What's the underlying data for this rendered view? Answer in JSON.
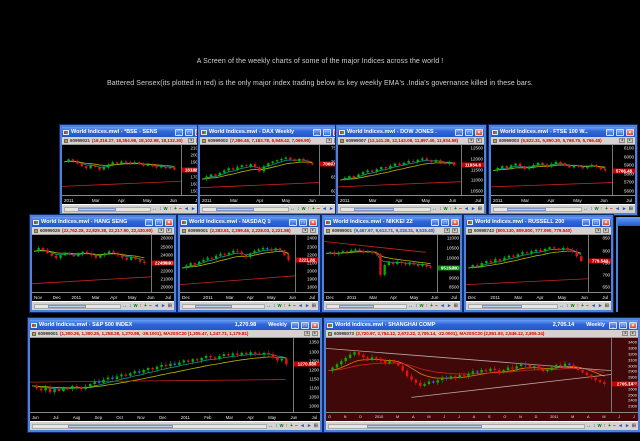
{
  "captions": {
    "line1": "A Screen of the weekly charts of some of the major Indices across the world !",
    "line2": "Battered Sensex(its plotted in red) is the only major index trading below its key weekly EMA's .India's governance killed in these bars."
  },
  "chrome": {
    "minimize": "_",
    "maximize": "□",
    "close": "×"
  },
  "strip_buttons": [
    "◄",
    "►"
  ],
  "toolbar": {
    "icons": [
      {
        "glyph": "↔",
        "color": "#2050c0"
      },
      {
        "glyph": "↕",
        "color": "#2050c0"
      },
      {
        "glyph": "w",
        "color": "#007700"
      },
      {
        "glyph": "↑",
        "color": "#cc0000"
      },
      {
        "glyph": "+",
        "color": "#007700"
      },
      {
        "glyph": "−",
        "color": "#cc0000"
      },
      {
        "glyph": "◄",
        "color": "#2050c0"
      },
      {
        "glyph": "►",
        "color": "#2050c0"
      },
      {
        "glyph": "⊞",
        "color": "#555555"
      }
    ]
  },
  "windows": [
    {
      "slug": "bse-sensex",
      "title": "World Indices.mwl - *BSE - SENS...",
      "price": "",
      "timeframe": "",
      "data_id": "60999021",
      "data_line": "(18,316.27, 18,354.98, 18,102.98, 18,132.30)",
      "data_color": "#dd0000",
      "chart_bg": "#000000",
      "y_labels": [
        "21000",
        "20000",
        "19000",
        "18000",
        "17000",
        "16000",
        "15000"
      ],
      "x_labels": [
        "2011",
        "Mar",
        "Apr",
        "May",
        "Jun",
        "Jul"
      ],
      "series": [
        0.7,
        0.76,
        0.72,
        0.66,
        0.6,
        0.55,
        0.62,
        0.58,
        0.52,
        0.57,
        0.64,
        0.69,
        0.66,
        0.71,
        0.69,
        0.66,
        0.69,
        0.65,
        0.61,
        0.64,
        0.6,
        0.57,
        0.59,
        0.55,
        0.57,
        0.52
      ],
      "mas": [
        {
          "p": 5,
          "c": "#00a0a0"
        },
        {
          "p": 12,
          "c": "#b8b800"
        }
      ],
      "lines": [
        {
          "x1": 0,
          "y1": 0.13,
          "x2": 1,
          "y2": 0.25,
          "c": "#cc2222"
        }
      ],
      "price_label": {
        "text": "18132.3",
        "color": "#cc0000"
      }
    },
    {
      "slug": "dax",
      "title": "World Indices.mwl - DAX   Weekly",
      "price": "",
      "timeframe": "",
      "data_id": "60999002",
      "data_line": "(7,286.46, 7,183.78, 6,948.42, 7,069.90)",
      "data_color": "#dd0000",
      "chart_bg": "#000000",
      "y_labels": [
        "7500",
        "7000",
        "6500",
        "6000"
      ],
      "x_labels": [
        "2011",
        "Mar",
        "Apr",
        "May",
        "Jun",
        "Ju"
      ],
      "series": [
        0.3,
        0.36,
        0.41,
        0.38,
        0.45,
        0.5,
        0.55,
        0.52,
        0.58,
        0.62,
        0.6,
        0.65,
        0.57,
        0.48,
        0.6,
        0.67,
        0.71,
        0.74,
        0.77,
        0.8,
        0.76,
        0.72,
        0.77,
        0.73,
        0.67,
        0.64
      ],
      "mas": [
        {
          "p": 5,
          "c": "#00a0a0"
        },
        {
          "p": 12,
          "c": "#b8b800"
        }
      ],
      "lines": [
        {
          "x1": 0,
          "y1": 0.1,
          "x2": 1,
          "y2": 0.22,
          "c": "#cc2222"
        }
      ],
      "price_label": {
        "text": "7069.90",
        "color": "#cc0000"
      }
    },
    {
      "slug": "dow-jones",
      "title": "World Indices.mwl - DOW JONES ...",
      "price": "",
      "timeframe": "",
      "data_id": "60999007",
      "data_line": "(12,141.28, 12,143.08, 11,897.40, 11,934.58)",
      "data_color": "#dd0000",
      "chart_bg": "#000000",
      "y_labels": [
        "12500",
        "12000",
        "11500",
        "11000",
        "10500"
      ],
      "x_labels": [
        "2011",
        "Mar",
        "Apr",
        "May",
        "Jun",
        "Jul"
      ],
      "series": [
        0.28,
        0.33,
        0.37,
        0.34,
        0.41,
        0.46,
        0.5,
        0.47,
        0.53,
        0.58,
        0.55,
        0.61,
        0.66,
        0.63,
        0.68,
        0.72,
        0.7,
        0.75,
        0.78,
        0.74,
        0.7,
        0.74,
        0.69,
        0.65,
        0.69,
        0.62
      ],
      "mas": [
        {
          "p": 5,
          "c": "#00a0a0"
        },
        {
          "p": 12,
          "c": "#b8b800"
        }
      ],
      "lines": [
        {
          "x1": 0,
          "y1": 0.12,
          "x2": 1,
          "y2": 0.24,
          "c": "#cc2222"
        }
      ],
      "price_label": {
        "text": "11934.6",
        "color": "#cc0000"
      }
    },
    {
      "slug": "ftse-100",
      "title": "World Indices.mwl - FTSE 100 W...",
      "price": "",
      "timeframe": "",
      "data_id": "60999003",
      "data_line": "(5,822.31, 5,890.30, 5,768.75, 5,766.48)",
      "data_color": "#dd0000",
      "chart_bg": "#000000",
      "y_labels": [
        "6100",
        "6000",
        "5900",
        "5800",
        "5700",
        "5600"
      ],
      "x_labels": [
        "2011",
        "Mar",
        "Apr",
        "May",
        "Jun",
        "Jul"
      ],
      "series": [
        0.5,
        0.56,
        0.6,
        0.55,
        0.62,
        0.66,
        0.6,
        0.54,
        0.58,
        0.63,
        0.68,
        0.64,
        0.59,
        0.65,
        0.7,
        0.67,
        0.62,
        0.57,
        0.62,
        0.59,
        0.55,
        0.59,
        0.63,
        0.58,
        0.53,
        0.5
      ],
      "mas": [
        {
          "p": 5,
          "c": "#00a0a0"
        },
        {
          "p": 12,
          "c": "#b8b800"
        }
      ],
      "lines": [
        {
          "x1": 0,
          "y1": 0.12,
          "x2": 1,
          "y2": 0.22,
          "c": "#cc2222"
        }
      ],
      "price_label": {
        "text": "5766.48",
        "color": "#cc0000"
      }
    },
    {
      "slug": "hang-seng",
      "title": "World Indices.mwl - HANG SENG ...",
      "price": "",
      "timeframe": "",
      "data_id": "60999026",
      "data_line": "(22,762.28, 22,829.38, 22,217.90, 22,430.90)",
      "data_color": "#dd0000",
      "chart_bg": "#000000",
      "y_labels": [
        "26000",
        "25000",
        "24000",
        "23000",
        "22000",
        "21000",
        "20000"
      ],
      "x_labels": [
        "Nov",
        "Dec",
        "2011",
        "Mar",
        "Apr",
        "May",
        "Jun",
        "Jul"
      ],
      "series": [
        0.76,
        0.83,
        0.79,
        0.72,
        0.67,
        0.62,
        0.68,
        0.73,
        0.7,
        0.66,
        0.7,
        0.75,
        0.72,
        0.68,
        0.63,
        0.68,
        0.72,
        0.76,
        0.73,
        0.68,
        0.63,
        0.59,
        0.64,
        0.6,
        0.55,
        0.52
      ],
      "mas": [
        {
          "p": 5,
          "c": "#00a0a0"
        },
        {
          "p": 12,
          "c": "#b8b800"
        }
      ],
      "lines": [
        {
          "x1": 0,
          "y1": 0.1,
          "x2": 1,
          "y2": 0.24,
          "c": "#cc2222"
        }
      ],
      "price_label": {
        "text": "22430.9",
        "color": "#cc0000"
      }
    },
    {
      "slug": "nasdaq-100",
      "title": "World Indices.mwl - NASDAQ 100 ...",
      "price": "",
      "timeframe": "",
      "data_id": "60999001",
      "data_line": "(2,283.61, 2,299.46, 2,228.03, 2,221.86)",
      "data_color": "#dd0000",
      "chart_bg": "#000000",
      "y_labels": [
        "2400",
        "2300",
        "2200",
        "2100",
        "2000",
        "1900",
        "1800"
      ],
      "x_labels": [
        "Dec",
        "2011",
        "Mar",
        "Apr",
        "May",
        "Jun",
        "Jul"
      ],
      "series": [
        0.42,
        0.47,
        0.52,
        0.49,
        0.55,
        0.59,
        0.63,
        0.61,
        0.67,
        0.71,
        0.69,
        0.73,
        0.77,
        0.75,
        0.7,
        0.64,
        0.72,
        0.77,
        0.8,
        0.83,
        0.81,
        0.78,
        0.82,
        0.78,
        0.68,
        0.58
      ],
      "mas": [
        {
          "p": 5,
          "c": "#00a0a0"
        },
        {
          "p": 12,
          "c": "#b8b800"
        }
      ],
      "lines": [
        {
          "x1": 0,
          "y1": 0.08,
          "x2": 1,
          "y2": 0.26,
          "c": "#cc2222"
        }
      ],
      "price_label": {
        "text": "2221.86",
        "color": "#cc0000"
      }
    },
    {
      "slug": "nikkei-225",
      "title": "World Indices.mwl - NIKKEI 225 ...",
      "price": "",
      "timeframe": "",
      "data_id": "60999001",
      "data_line": "(9,467.97, 9,613.71, 9,318.31, 9,515.40)",
      "data_color": "#2244cc",
      "chart_bg": "#000000",
      "y_labels": [
        "11000",
        "10500",
        "10000",
        "9500",
        "9000",
        "8500"
      ],
      "x_labels": [
        "Dec",
        "2011",
        "Mar",
        "Apr",
        "May",
        "Jun",
        "Jul"
      ],
      "series": [
        0.72,
        0.74,
        0.7,
        0.73,
        0.76,
        0.74,
        0.78,
        0.8,
        0.77,
        0.74,
        0.76,
        0.73,
        0.7,
        0.28,
        0.48,
        0.54,
        0.5,
        0.55,
        0.52,
        0.49,
        0.53,
        0.49,
        0.46,
        0.5,
        0.45,
        0.43
      ],
      "mas": [
        {
          "p": 5,
          "c": "#00a0a0"
        },
        {
          "p": 12,
          "c": "#b8b800"
        }
      ],
      "lines": [
        {
          "x1": 0,
          "y1": 0.96,
          "x2": 0.9,
          "y2": 0.74,
          "c": "#cc2222"
        }
      ],
      "price_label": {
        "text": "9515.40",
        "color": "#008800"
      }
    },
    {
      "slug": "russell-2000",
      "title": "World Indices.mwl - RUSSELL 200...",
      "price": "",
      "timeframe": "",
      "data_id": "60998743",
      "data_line": "(800.130, 809.800, 777.090, 779.540)",
      "data_color": "#dd0000",
      "chart_bg": "#000000",
      "y_labels": [
        "850",
        "800",
        "750",
        "700",
        "650"
      ],
      "x_labels": [
        "Dec",
        "2011",
        "Mar",
        "Apr",
        "May",
        "Jun",
        "Jul"
      ],
      "series": [
        0.42,
        0.48,
        0.45,
        0.52,
        0.56,
        0.53,
        0.6,
        0.57,
        0.63,
        0.67,
        0.65,
        0.7,
        0.74,
        0.72,
        0.76,
        0.79,
        0.76,
        0.81,
        0.84,
        0.82,
        0.79,
        0.83,
        0.8,
        0.76,
        0.66,
        0.56
      ],
      "mas": [
        {
          "p": 5,
          "c": "#00a0a0"
        },
        {
          "p": 12,
          "c": "#b8b800"
        }
      ],
      "lines": [
        {
          "x1": 0,
          "y1": 0.08,
          "x2": 1,
          "y2": 0.2,
          "c": "#cc2222"
        }
      ],
      "price_label": {
        "text": "779.540",
        "color": "#cc0000"
      }
    },
    {
      "slug": "sp-500",
      "title": "World Indices.mwl - S&P 500 INDEX",
      "price": "1,270.98",
      "timeframe": "Weekly",
      "data_id": "60999001",
      "data_line": "(1,300.26, 1,300.25, 1,258.28, 1,270.98, -29.1001), MA20SC20 (1,305.47, 1,247.71, 1,179.81)",
      "data_color": "#dd0000",
      "chart_bg": "#000000",
      "y_labels": [
        "1350",
        "1300",
        "1250",
        "1200",
        "1150",
        "1100",
        "1050",
        "1000"
      ],
      "x_labels": [
        "Jun",
        "Jul",
        "Aug",
        "Sep",
        "Oct",
        "Nov",
        "Dec",
        "2011",
        "Feb",
        "Mar",
        "Apr",
        "May",
        "Jun",
        "Jul"
      ],
      "series": [
        0.34,
        0.3,
        0.27,
        0.32,
        0.24,
        0.29,
        0.26,
        0.31,
        0.29,
        0.34,
        0.32,
        0.29,
        0.33,
        0.37,
        0.41,
        0.39,
        0.44,
        0.47,
        0.45,
        0.49,
        0.52,
        0.5,
        0.54,
        0.57,
        0.55,
        0.59,
        0.62,
        0.6,
        0.64,
        0.67,
        0.65,
        0.69,
        0.67,
        0.71,
        0.74,
        0.72,
        0.76,
        0.74,
        0.78,
        0.81,
        0.79,
        0.77,
        0.81,
        0.84,
        0.82,
        0.85,
        0.83,
        0.86,
        0.84,
        0.87,
        0.85,
        0.83,
        0.86,
        0.84,
        0.79,
        0.74,
        0.77,
        0.68
      ],
      "mas": [
        {
          "p": 8,
          "c": "#009999"
        },
        {
          "p": 20,
          "c": "#b8b800"
        }
      ],
      "lines": [
        {
          "x1": 0,
          "y1": 0.4,
          "x2": 0.97,
          "y2": 0.44,
          "c": "#cc2222"
        }
      ],
      "price_label": {
        "text": "1270.980",
        "color": "#cc0000"
      }
    },
    {
      "slug": "shanghai-comp",
      "title": "World Indices.mwl - SHANGHAI COMP",
      "price": "2,705.14",
      "timeframe": "Weekly",
      "data_id": "60998073",
      "data_line": "(2,720.97, 2,754.12, 2,672.22, 2,705.14, -22.0001), MA20SC20 (2,851.93, 2,846.12, 2,806.34)",
      "data_color": "#dd0000",
      "chart_bg": "#400808",
      "y_labels": [
        "3400",
        "3300",
        "3200",
        "3100",
        "3000",
        "2900",
        "2800",
        "2700",
        "2600",
        "2500",
        "2400",
        "2300"
      ],
      "x_labels": [
        "O",
        "N",
        "D",
        "2010",
        "M",
        "A",
        "M",
        "J",
        "J",
        "A",
        "S",
        "O",
        "N",
        "D",
        "2011",
        "M",
        "A",
        "M",
        "J",
        "J"
      ],
      "series": [
        0.58,
        0.63,
        0.68,
        0.73,
        0.78,
        0.83,
        0.87,
        0.83,
        0.79,
        0.75,
        0.79,
        0.77,
        0.73,
        0.69,
        0.73,
        0.71,
        0.66,
        0.58,
        0.49,
        0.44,
        0.39,
        0.34,
        0.37,
        0.41,
        0.39,
        0.43,
        0.47,
        0.45,
        0.49,
        0.47,
        0.51,
        0.49,
        0.53,
        0.57,
        0.55,
        0.59,
        0.57,
        0.61,
        0.59,
        0.55,
        0.59,
        0.63,
        0.61,
        0.65,
        0.69,
        0.67,
        0.63,
        0.65,
        0.61,
        0.57,
        0.59,
        0.63,
        0.67,
        0.65,
        0.69,
        0.67,
        0.63,
        0.59,
        0.55,
        0.51,
        0.47,
        0.43,
        0.4,
        0.37
      ],
      "mas": [
        {
          "p": 10,
          "c": "#e08000"
        },
        {
          "p": 25,
          "c": "#cc2222"
        }
      ],
      "lines": [
        {
          "x1": 0,
          "y1": 0.93,
          "x2": 1,
          "y2": 0.58,
          "c": "#b9a8a8"
        },
        {
          "x1": 0.3,
          "y1": 0.16,
          "x2": 1,
          "y2": 0.52,
          "c": "#b9a8a8"
        }
      ],
      "price_label": {
        "text": "2705.14",
        "color": "#cc0000"
      }
    }
  ]
}
